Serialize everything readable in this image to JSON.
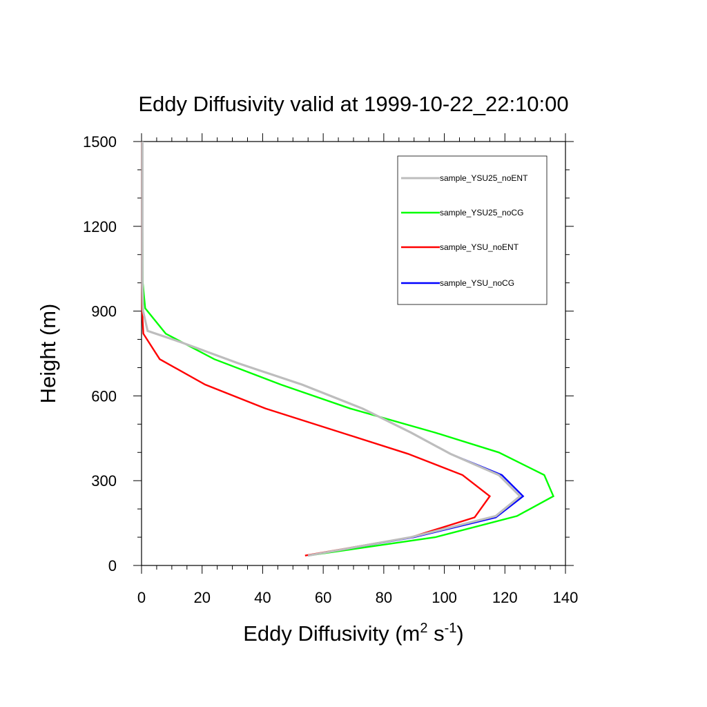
{
  "chart_data": {
    "type": "line",
    "title": "Eddy Diffusivity valid at 1999-10-22_22:10:00",
    "xlabel": {
      "text": "Eddy Diffusivity (m",
      "sup1": "2",
      "mid": " s",
      "sup2": "-1",
      "end": ")"
    },
    "ylabel": "Height (m)",
    "xlim": [
      0,
      140
    ],
    "ylim": [
      0,
      1500
    ],
    "x_ticks": [
      0,
      20,
      40,
      60,
      80,
      100,
      120,
      140
    ],
    "y_ticks": [
      0,
      300,
      600,
      900,
      1200,
      1500
    ],
    "x_tick_labels": [
      "0",
      "20",
      "40",
      "60",
      "80",
      "100",
      "120",
      "140"
    ],
    "y_tick_labels": [
      "0",
      "300",
      "600",
      "900",
      "1200",
      "1500"
    ],
    "legend_position": "top-right",
    "series": [
      {
        "name": "sample_YSU25_noENT",
        "color": "#bdbdbd",
        "points": [
          [
            55,
            35
          ],
          [
            89,
            100
          ],
          [
            117,
            175
          ],
          [
            125,
            245
          ],
          [
            118,
            320
          ],
          [
            102,
            395
          ],
          [
            89,
            470
          ],
          [
            73,
            555
          ],
          [
            53,
            640
          ],
          [
            32,
            715
          ],
          [
            13,
            790
          ],
          [
            2,
            830
          ],
          [
            0.5,
            900
          ],
          [
            0.3,
            1000
          ],
          [
            0.3,
            1200
          ],
          [
            0.3,
            1500
          ]
        ]
      },
      {
        "name": "sample_YSU25_noCG",
        "color": "#00ff00",
        "points": [
          [
            55,
            35
          ],
          [
            97,
            100
          ],
          [
            124,
            175
          ],
          [
            136,
            245
          ],
          [
            133,
            320
          ],
          [
            118,
            400
          ],
          [
            97,
            470
          ],
          [
            69,
            555
          ],
          [
            46,
            640
          ],
          [
            24,
            730
          ],
          [
            8,
            820
          ],
          [
            1.2,
            910
          ],
          [
            0.4,
            1000
          ],
          [
            0.3,
            1200
          ],
          [
            0.3,
            1500
          ]
        ]
      },
      {
        "name": "sample_YSU_noENT",
        "color": "#ff0000",
        "points": [
          [
            54,
            35
          ],
          [
            89,
            100
          ],
          [
            110,
            170
          ],
          [
            115,
            245
          ],
          [
            106,
            320
          ],
          [
            88,
            395
          ],
          [
            66,
            470
          ],
          [
            41,
            555
          ],
          [
            21,
            640
          ],
          [
            6,
            730
          ],
          [
            0.6,
            820
          ],
          [
            0.2,
            900
          ],
          [
            0.2,
            1000
          ],
          [
            0.2,
            1200
          ],
          [
            0.2,
            1500
          ]
        ]
      },
      {
        "name": "sample_YSU_noCG",
        "color": "#0000ff",
        "points": [
          [
            55,
            35
          ],
          [
            90,
            100
          ],
          [
            117,
            170
          ],
          [
            126,
            245
          ],
          [
            119,
            320
          ],
          [
            102,
            395
          ],
          [
            89,
            470
          ],
          [
            73,
            555
          ],
          [
            53,
            640
          ],
          [
            32,
            715
          ],
          [
            13,
            790
          ],
          [
            2,
            830
          ],
          [
            0.5,
            900
          ],
          [
            0.3,
            1000
          ],
          [
            0.3,
            1200
          ],
          [
            0.3,
            1500
          ]
        ]
      }
    ]
  }
}
